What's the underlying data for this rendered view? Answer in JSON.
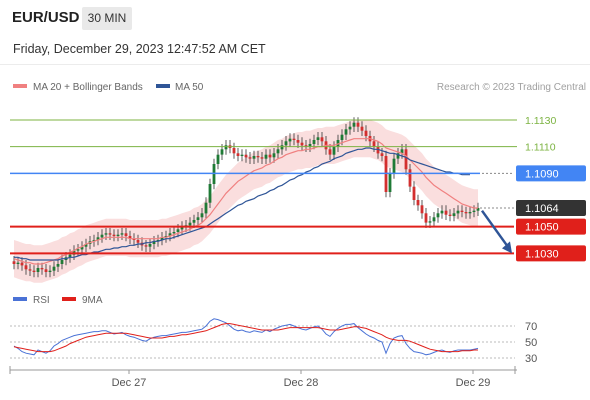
{
  "header": {
    "symbol": "EUR/USD",
    "timeframe": "30 MIN",
    "timestamp": "Friday, December 29, 2023 12:47:52 AM CET"
  },
  "legend": {
    "items": [
      {
        "label": "MA 20 + Bollinger Bands",
        "color": "#f08080"
      },
      {
        "label": "MA 50",
        "color": "#2f5597"
      }
    ],
    "credit": "Research © 2023 Trading Central"
  },
  "chart_data": [
    {
      "type": "candlestick",
      "title": "",
      "x_labels": [
        "Dec 27",
        "Dec 28",
        "Dec 29"
      ],
      "ylim": [
        1.101,
        1.1145
      ],
      "levels": [
        {
          "value": 1.113,
          "label": "1.1130",
          "style": "resistance-minor",
          "color": "#7cb342"
        },
        {
          "value": 1.111,
          "label": "1.1110",
          "style": "resistance-minor",
          "color": "#7cb342"
        },
        {
          "value": 1.109,
          "label": "1.1090",
          "style": "pivot",
          "color": "#4285f4"
        },
        {
          "value": 1.1064,
          "label": "1.1064",
          "style": "last-price",
          "color": "#333333"
        },
        {
          "value": 1.105,
          "label": "1.1050",
          "style": "support",
          "color": "#e0201b"
        },
        {
          "value": 1.103,
          "label": "1.1030",
          "style": "support",
          "color": "#e0201b"
        }
      ],
      "forecast_arrow": {
        "from": 1.1062,
        "to": 1.103,
        "color": "#2f5597"
      },
      "price_path": [
        1.1022,
        1.1023,
        1.1021,
        1.1018,
        1.1017,
        1.1016,
        1.1019,
        1.1018,
        1.1016,
        1.1017,
        1.102,
        1.1022,
        1.1025,
        1.1027,
        1.1029,
        1.1032,
        1.1033,
        1.1035,
        1.1037,
        1.1039,
        1.104,
        1.1042,
        1.1044,
        1.1045,
        1.1044,
        1.1043,
        1.1044,
        1.1045,
        1.1043,
        1.1041,
        1.104,
        1.1038,
        1.1036,
        1.1035,
        1.1037,
        1.1039,
        1.104,
        1.1042,
        1.1043,
        1.1045,
        1.1046,
        1.1048,
        1.105,
        1.1051,
        1.1053,
        1.1055,
        1.1057,
        1.106,
        1.1068,
        1.1082,
        1.1097,
        1.1104,
        1.1108,
        1.1111,
        1.1109,
        1.1105,
        1.1103,
        1.1104,
        1.1102,
        1.1101,
        1.1103,
        1.1102,
        1.1101,
        1.1104,
        1.1102,
        1.1105,
        1.1108,
        1.1111,
        1.1114,
        1.1116,
        1.1115,
        1.1113,
        1.1111,
        1.111,
        1.1112,
        1.1115,
        1.1117,
        1.1114,
        1.1108,
        1.1104,
        1.111,
        1.1115,
        1.1119,
        1.1123,
        1.1125,
        1.1128,
        1.1125,
        1.1122,
        1.1118,
        1.1114,
        1.111,
        1.1105,
        1.1103,
        1.1076,
        1.109,
        1.1101,
        1.1105,
        1.1108,
        1.1093,
        1.108,
        1.107,
        1.1066,
        1.106,
        1.1053,
        1.1054,
        1.1057,
        1.106,
        1.1062,
        1.1059,
        1.1058,
        1.106,
        1.1062,
        1.1061,
        1.106,
        1.1061,
        1.1062,
        1.1064
      ],
      "ma20_path": [
        1.1026,
        1.1025,
        1.1024,
        1.1023,
        1.1023,
        1.1022,
        1.1022,
        1.1022,
        1.1023,
        1.1024,
        1.1025,
        1.1026,
        1.1028,
        1.1029,
        1.1031,
        1.1032,
        1.1034,
        1.1035,
        1.1037,
        1.1038,
        1.1039,
        1.104,
        1.1041,
        1.1042,
        1.1042,
        1.1042,
        1.1042,
        1.1042,
        1.1042,
        1.1041,
        1.1041,
        1.1041,
        1.1041,
        1.1041,
        1.1041,
        1.1041,
        1.1041,
        1.1042,
        1.1042,
        1.1043,
        1.1044,
        1.1045,
        1.1046,
        1.1047,
        1.1048,
        1.105,
        1.1051,
        1.1053,
        1.1056,
        1.1059,
        1.1063,
        1.1067,
        1.1071,
        1.1075,
        1.1078,
        1.1081,
        1.1084,
        1.1086,
        1.1088,
        1.109,
        1.1092,
        1.1093,
        1.1094,
        1.1096,
        1.1097,
        1.1099,
        1.1101,
        1.1102,
        1.1104,
        1.1105,
        1.1106,
        1.1107,
        1.1107,
        1.1108,
        1.1108,
        1.1109,
        1.111,
        1.111,
        1.1111,
        1.1111,
        1.1111,
        1.1112,
        1.1113,
        1.1114,
        1.1115,
        1.1116,
        1.1116,
        1.1116,
        1.1116,
        1.1116,
        1.1115,
        1.1114,
        1.1112,
        1.1109,
        1.1108,
        1.1107,
        1.1106,
        1.1105,
        1.1103,
        1.11,
        1.1097,
        1.1094,
        1.1091,
        1.1087,
        1.1084,
        1.1081,
        1.1079,
        1.1077,
        1.1075,
        1.1073,
        1.1071,
        1.1069,
        1.1067,
        1.1066,
        1.1065,
        1.1064,
        1.1064
      ],
      "ma50_path": [
        1.1027,
        1.1027,
        1.1026,
        1.1026,
        1.1025,
        1.1025,
        1.1025,
        1.1025,
        1.1025,
        1.1025,
        1.1025,
        1.1025,
        1.1026,
        1.1026,
        1.1027,
        1.1027,
        1.1028,
        1.1029,
        1.1029,
        1.103,
        1.1031,
        1.1031,
        1.1032,
        1.1033,
        1.1033,
        1.1034,
        1.1034,
        1.1035,
        1.1035,
        1.1036,
        1.1036,
        1.1037,
        1.1037,
        1.1038,
        1.1038,
        1.1039,
        1.1039,
        1.104,
        1.1041,
        1.1041,
        1.1042,
        1.1043,
        1.1044,
        1.1045,
        1.1046,
        1.1047,
        1.1048,
        1.1049,
        1.105,
        1.1052,
        1.1054,
        1.1056,
        1.1058,
        1.106,
        1.1062,
        1.1064,
        1.1066,
        1.1067,
        1.1069,
        1.107,
        1.1071,
        1.1073,
        1.1074,
        1.1075,
        1.1077,
        1.1078,
        1.108,
        1.1081,
        1.1083,
        1.1085,
        1.1086,
        1.1088,
        1.1089,
        1.1091,
        1.1092,
        1.1094,
        1.1095,
        1.1097,
        1.1098,
        1.1099,
        1.1101,
        1.1102,
        1.1103,
        1.1105,
        1.1106,
        1.1107,
        1.1108,
        1.1108,
        1.1109,
        1.1109,
        1.1108,
        1.1108,
        1.1107,
        1.1106,
        1.1105,
        1.1105,
        1.1104,
        1.1103,
        1.1102,
        1.11,
        1.1099,
        1.1098,
        1.1097,
        1.1096,
        1.1095,
        1.1094,
        1.1093,
        1.1092,
        1.1091,
        1.1091,
        1.109,
        1.109,
        1.1089,
        1.1089,
        1.1089
      ]
    },
    {
      "type": "line",
      "title": "",
      "series": [
        {
          "name": "RSI",
          "color": "#4a72d6",
          "values": [
            45,
            42,
            38,
            36,
            35,
            34,
            40,
            38,
            36,
            39,
            45,
            48,
            52,
            54,
            56,
            58,
            59,
            60,
            61,
            62,
            63,
            63,
            64,
            64,
            62,
            60,
            61,
            62,
            59,
            57,
            56,
            54,
            52,
            51,
            54,
            56,
            57,
            58,
            58,
            59,
            60,
            61,
            62,
            62,
            63,
            64,
            65,
            66,
            70,
            76,
            79,
            78,
            76,
            74,
            70,
            66,
            64,
            65,
            63,
            62,
            64,
            63,
            62,
            65,
            63,
            66,
            68,
            70,
            71,
            72,
            70,
            68,
            66,
            65,
            67,
            69,
            70,
            66,
            60,
            57,
            63,
            67,
            70,
            72,
            72,
            73,
            68,
            64,
            60,
            57,
            55,
            52,
            50,
            36,
            48,
            55,
            57,
            58,
            48,
            42,
            38,
            37,
            36,
            34,
            35,
            37,
            39,
            40,
            38,
            37,
            39,
            40,
            40,
            40,
            40,
            41,
            42
          ]
        },
        {
          "name": "9MA",
          "color": "#e0201b",
          "values": [
            44,
            43,
            42,
            41,
            40,
            39,
            38,
            38,
            38,
            38,
            39,
            41,
            43,
            45,
            48,
            50,
            52,
            54,
            56,
            57,
            58,
            59,
            60,
            61,
            61,
            61,
            61,
            61,
            61,
            60,
            59,
            58,
            57,
            56,
            55,
            55,
            55,
            55,
            56,
            57,
            57,
            58,
            59,
            59,
            60,
            61,
            62,
            63,
            64,
            66,
            68,
            70,
            72,
            73,
            73,
            72,
            71,
            70,
            69,
            68,
            67,
            66,
            65,
            65,
            65,
            65,
            65,
            66,
            67,
            68,
            68,
            68,
            68,
            68,
            68,
            68,
            68,
            67,
            66,
            65,
            65,
            65,
            66,
            67,
            68,
            69,
            69,
            68,
            67,
            65,
            63,
            61,
            59,
            56,
            54,
            53,
            52,
            52,
            52,
            51,
            49,
            47,
            45,
            43,
            41,
            40,
            39,
            38,
            38,
            38,
            38,
            38,
            39,
            39,
            39,
            40,
            40
          ]
        }
      ],
      "y_ticks": [
        30,
        50,
        70
      ],
      "ylim": [
        20,
        80
      ]
    }
  ]
}
